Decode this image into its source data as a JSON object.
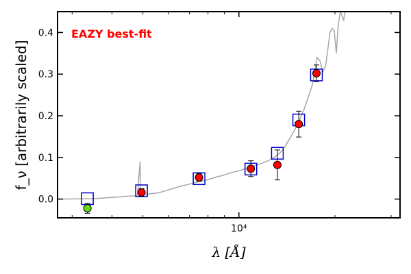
{
  "chart_data": {
    "type": "scatter",
    "title": "",
    "annotation": {
      "text": "EAZY best-fit",
      "color": "#ff0000"
    },
    "xlabel": "λ [Å]",
    "ylabel": "f_ν [arbitrarily scaled]",
    "x_scale": "log",
    "xlim": [
      2700,
      32000
    ],
    "ylim": [
      -0.045,
      0.45
    ],
    "y_ticks": [
      0.0,
      0.1,
      0.2,
      0.3,
      0.4
    ],
    "y_tick_labels": [
      "0.0",
      "0.1",
      "0.2",
      "0.3",
      "0.4"
    ],
    "x_major_ticks": [
      10000
    ],
    "x_major_tick_labels": [
      "10⁴"
    ],
    "x_minor_ticks": [
      3000,
      4000,
      5000,
      6000,
      7000,
      8000,
      9000,
      20000,
      30000
    ],
    "grid": false,
    "colors": {
      "model_line": "#a6a6a6",
      "model_photometry": "#0000cc",
      "observed": "#ff0000",
      "upper_limit": "#66dd11"
    },
    "series": [
      {
        "kind": "line",
        "points": [
          [
            2700,
            0.0
          ],
          [
            3500,
            0.001
          ],
          [
            4000,
            0.004
          ],
          [
            4500,
            0.007
          ],
          [
            4800,
            0.008
          ],
          [
            4900,
            0.09
          ],
          [
            4910,
            0.01
          ],
          [
            5200,
            0.012
          ],
          [
            5600,
            0.015
          ],
          [
            6000,
            0.022
          ],
          [
            6500,
            0.03
          ],
          [
            7000,
            0.036
          ],
          [
            7500,
            0.042
          ],
          [
            8000,
            0.047
          ],
          [
            8500,
            0.053
          ],
          [
            9000,
            0.058
          ],
          [
            9500,
            0.064
          ],
          [
            10000,
            0.068
          ],
          [
            10500,
            0.073
          ],
          [
            11000,
            0.078
          ],
          [
            11500,
            0.083
          ],
          [
            12000,
            0.088
          ],
          [
            12500,
            0.094
          ],
          [
            13000,
            0.102
          ],
          [
            13500,
            0.112
          ],
          [
            14000,
            0.128
          ],
          [
            14500,
            0.148
          ],
          [
            15000,
            0.168
          ],
          [
            15500,
            0.19
          ],
          [
            16000,
            0.215
          ],
          [
            16500,
            0.245
          ],
          [
            17000,
            0.275
          ],
          [
            17300,
            0.31
          ],
          [
            17600,
            0.34
          ],
          [
            18000,
            0.33
          ],
          [
            18300,
            0.305
          ],
          [
            18700,
            0.32
          ],
          [
            19000,
            0.36
          ],
          [
            19300,
            0.4
          ],
          [
            19600,
            0.41
          ],
          [
            19900,
            0.405
          ],
          [
            20200,
            0.35
          ],
          [
            20500,
            0.42
          ],
          [
            20800,
            0.45
          ],
          [
            21300,
            0.43
          ],
          [
            21500,
            0.45
          ]
        ]
      },
      {
        "kind": "model-photometry",
        "x": [
          3350,
          4950,
          7500,
          10900,
          13200,
          15400,
          17500
        ],
        "y": [
          0.001,
          0.02,
          0.049,
          0.072,
          0.11,
          0.19,
          0.298
        ]
      },
      {
        "kind": "observed",
        "x": [
          4950,
          7500,
          10900,
          13200,
          15400,
          17500
        ],
        "y": [
          0.016,
          0.052,
          0.073,
          0.082,
          0.18,
          0.302
        ],
        "yerr": [
          0.009,
          0.009,
          0.019,
          0.036,
          0.031,
          0.02
        ]
      },
      {
        "kind": "upper-limit",
        "x": [
          3350
        ],
        "y": [
          -0.022
        ],
        "yerr": [
          0.012
        ]
      }
    ]
  }
}
